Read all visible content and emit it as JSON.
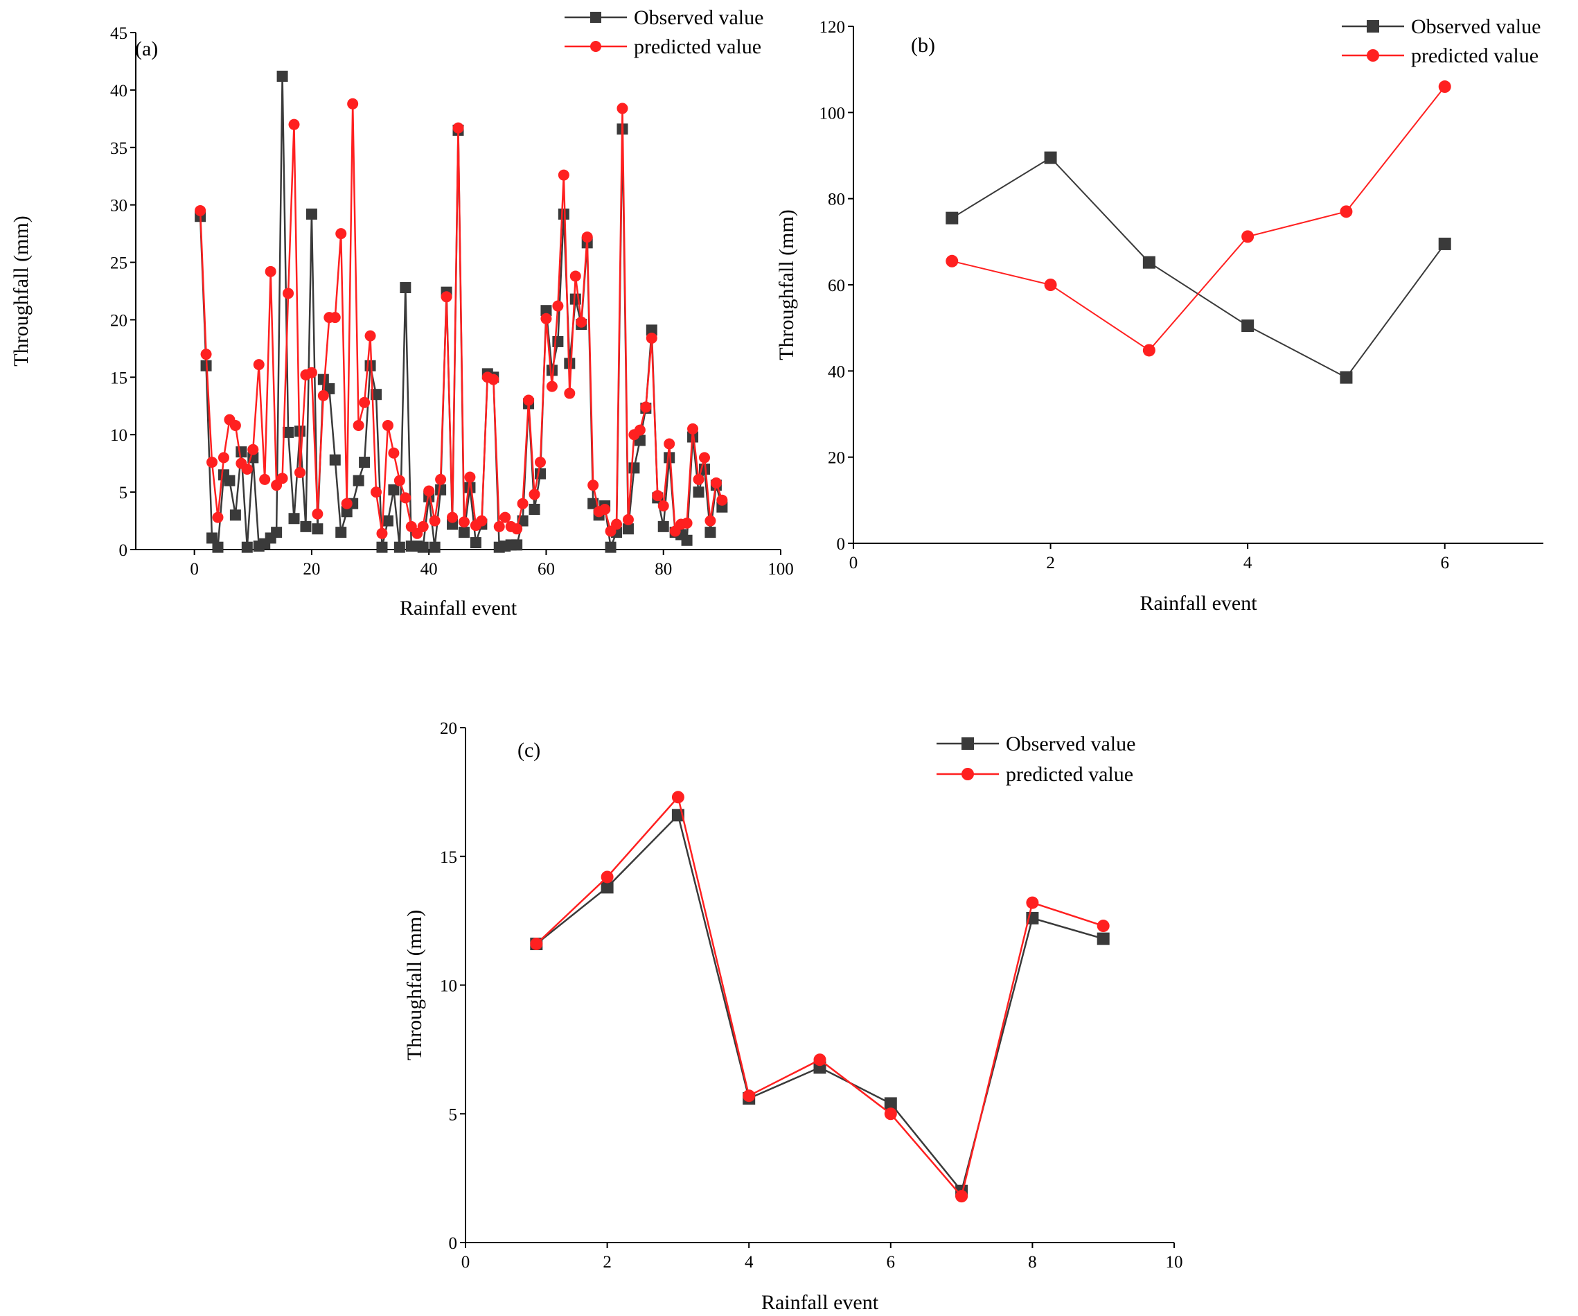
{
  "figure": {
    "chart_data": [
      {
        "type": "line",
        "panel_label": "(a)",
        "xlabel": "Rainfall event",
        "ylabel": "Throughfall (mm)",
        "xlim": [
          -10,
          100
        ],
        "ylim": [
          0,
          45
        ],
        "xticks": [
          0,
          20,
          40,
          60,
          80,
          100
        ],
        "yticks": [
          0,
          5,
          10,
          15,
          20,
          25,
          30,
          35,
          40,
          45
        ],
        "legend_position": "top-right",
        "x": [
          1,
          2,
          3,
          4,
          5,
          6,
          7,
          8,
          9,
          10,
          11,
          12,
          13,
          14,
          15,
          16,
          17,
          18,
          19,
          20,
          21,
          22,
          23,
          24,
          25,
          26,
          27,
          28,
          29,
          30,
          31,
          32,
          33,
          34,
          35,
          36,
          37,
          38,
          39,
          40,
          41,
          42,
          43,
          44,
          45,
          46,
          47,
          48,
          49,
          50,
          51,
          52,
          53,
          54,
          55,
          56,
          57,
          58,
          59,
          60,
          61,
          62,
          63,
          64,
          65,
          66,
          67,
          68,
          69,
          70,
          71,
          72,
          73,
          74,
          75,
          76,
          77,
          78,
          79,
          80,
          81,
          82,
          83,
          84,
          85,
          86,
          87,
          88,
          89,
          90
        ],
        "series": [
          {
            "name": "Observed value",
            "color": "#3a3a3a",
            "marker": "square",
            "values": [
              29,
              16,
              1,
              0.2,
              6.5,
              6,
              3,
              8.5,
              0.2,
              8,
              0.3,
              0.5,
              1,
              1.5,
              41.2,
              10.2,
              2.7,
              10.3,
              2,
              29.2,
              1.8,
              14.8,
              14,
              7.8,
              1.5,
              3.3,
              4,
              6,
              7.6,
              16,
              13.5,
              0.2,
              2.5,
              5.2,
              0.2,
              22.8,
              0.3,
              0.3,
              0.2,
              4.6,
              0.2,
              5.2,
              22.4,
              2.2,
              36.5,
              1.5,
              5.4,
              0.6,
              2.2,
              15.3,
              15,
              0.2,
              0.3,
              0.4,
              0.4,
              2.5,
              12.7,
              3.5,
              6.6,
              20.8,
              15.6,
              18.1,
              29.2,
              16.2,
              21.8,
              19.6,
              26.7,
              4,
              3,
              3.8,
              0.2,
              1.5,
              36.6,
              1.8,
              7.1,
              9.5,
              12.3,
              19.1,
              4.5,
              2,
              8,
              1.5,
              1.3,
              0.8,
              9.8,
              5,
              7,
              1.5,
              5.6,
              3.7
            ]
          },
          {
            "name": "predicted value",
            "color": "#ff2020",
            "marker": "circle",
            "values": [
              29.5,
              17,
              7.6,
              2.8,
              8,
              11.3,
              10.8,
              7.5,
              7,
              8.7,
              16.1,
              6.1,
              24.2,
              5.6,
              6.2,
              22.3,
              37,
              6.7,
              15.2,
              15.4,
              3.1,
              13.4,
              20.2,
              20.2,
              27.5,
              4,
              38.8,
              10.8,
              12.8,
              18.6,
              5,
              1.4,
              10.8,
              8.4,
              6,
              4.5,
              2,
              1.4,
              2,
              5.1,
              2.5,
              6.1,
              22,
              2.8,
              36.7,
              2.4,
              6.3,
              2.1,
              2.5,
              15,
              14.8,
              2,
              2.8,
              2,
              1.8,
              4,
              13,
              4.8,
              7.6,
              20.1,
              14.2,
              21.2,
              32.6,
              13.6,
              23.8,
              19.8,
              27.2,
              5.6,
              3.3,
              3.5,
              1.6,
              2.2,
              38.4,
              2.6,
              10,
              10.4,
              12.4,
              18.4,
              4.7,
              3.8,
              9.2,
              1.6,
              2.2,
              2.3,
              10.5,
              6.1,
              8,
              2.5,
              5.8,
              4.3
            ]
          }
        ]
      },
      {
        "type": "line",
        "panel_label": "(b)",
        "xlabel": "Rainfall event",
        "ylabel": "Throughfall (mm)",
        "xlim": [
          0,
          7
        ],
        "ylim": [
          0,
          120
        ],
        "xticks": [
          0,
          2,
          4,
          6
        ],
        "yticks": [
          0,
          20,
          40,
          60,
          80,
          100,
          120
        ],
        "legend_position": "top-right",
        "x": [
          1,
          2,
          3,
          4,
          5,
          6
        ],
        "series": [
          {
            "name": "Observed value",
            "color": "#3a3a3a",
            "marker": "square",
            "values": [
              75.5,
              89.5,
              65.2,
              50.5,
              38.5,
              69.5
            ]
          },
          {
            "name": "predicted value",
            "color": "#ff2020",
            "marker": "circle",
            "values": [
              65.5,
              60,
              44.8,
              71.2,
              77,
              106
            ]
          }
        ]
      },
      {
        "type": "line",
        "panel_label": "(c)",
        "xlabel": "Rainfall event",
        "ylabel": "Throughfall (mm)",
        "xlim": [
          0,
          10
        ],
        "ylim": [
          0,
          20
        ],
        "xticks": [
          0,
          2,
          4,
          6,
          8,
          10
        ],
        "yticks": [
          0,
          5,
          10,
          15,
          20
        ],
        "legend_position": "top-right",
        "x": [
          1,
          2,
          3,
          4,
          5,
          6,
          7,
          8,
          9
        ],
        "series": [
          {
            "name": "Observed value",
            "color": "#3a3a3a",
            "marker": "square",
            "values": [
              11.6,
              13.8,
              16.6,
              5.6,
              6.8,
              5.4,
              2,
              12.6,
              11.8
            ]
          },
          {
            "name": "predicted value",
            "color": "#ff2020",
            "marker": "circle",
            "values": [
              11.6,
              14.2,
              17.3,
              5.7,
              7.1,
              5,
              1.8,
              13.2,
              12.3
            ]
          }
        ]
      }
    ]
  }
}
